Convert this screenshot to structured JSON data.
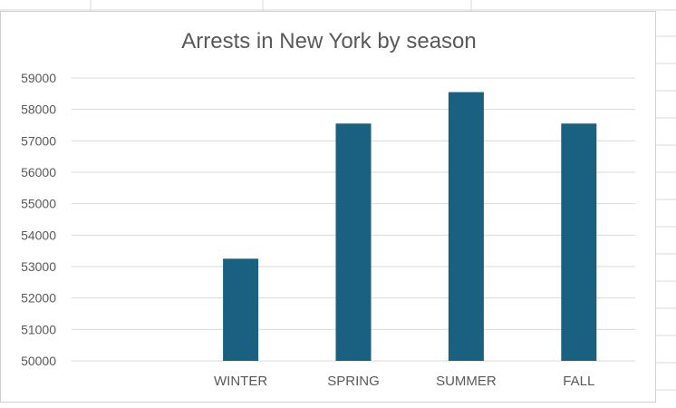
{
  "chart_data": {
    "type": "bar",
    "title": "Arrests in New York by season",
    "categories": [
      "",
      "WINTER",
      "SPRING",
      "SUMMER",
      "FALL"
    ],
    "values": [
      null,
      53250,
      57550,
      58550,
      57550
    ],
    "ylim": [
      50000,
      59000
    ],
    "yticks": [
      50000,
      51000,
      52000,
      53000,
      54000,
      55000,
      56000,
      57000,
      58000,
      59000
    ],
    "xlabel": "",
    "ylabel": "",
    "grid": true,
    "legend": "none",
    "bar_color": "#1a6080"
  }
}
